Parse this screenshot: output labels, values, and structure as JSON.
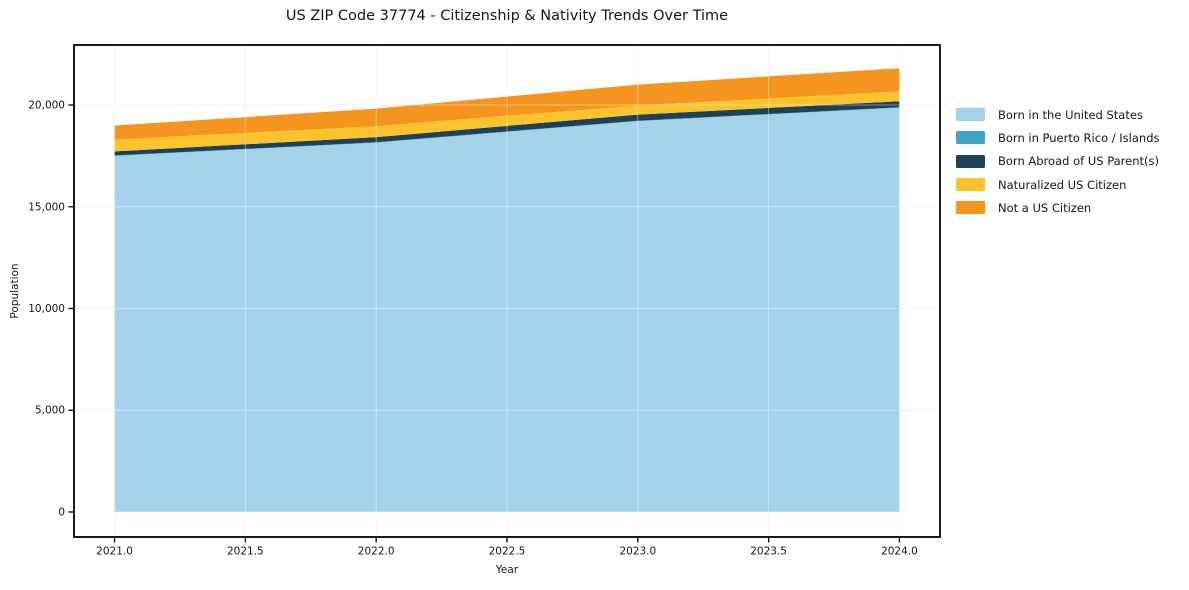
{
  "chart_data": {
    "type": "area",
    "stacked": true,
    "title": "US ZIP Code 37774 - Citizenship & Nativity Trends Over Time",
    "xlabel": "Year",
    "ylabel": "Population",
    "x": [
      2021,
      2022,
      2023,
      2024
    ],
    "series": [
      {
        "name": "Born in the United States",
        "color": "#a3d2e9",
        "values": [
          17500,
          18150,
          19210,
          19870
        ]
      },
      {
        "name": "Born in Puerto Rico / Islands",
        "color": "#41a5c6",
        "values": [
          20,
          20,
          20,
          20
        ]
      },
      {
        "name": "Born Abroad of US Parent(s)",
        "color": "#1e4254",
        "values": [
          200,
          250,
          300,
          295
        ]
      },
      {
        "name": "Naturalized US Citizen",
        "color": "#fdc32d",
        "values": [
          580,
          540,
          450,
          485
        ]
      },
      {
        "name": "Not a US Citizen",
        "color": "#f5941f",
        "values": [
          690,
          865,
          1025,
          1140
        ]
      }
    ],
    "xticks": [
      2021.0,
      2021.5,
      2022.0,
      2022.5,
      2023.0,
      2023.5,
      2024.0
    ],
    "xtick_labels": [
      "2021.0",
      "2021.5",
      "2022.0",
      "2022.5",
      "2023.0",
      "2023.5",
      "2024.0"
    ],
    "yticks": [
      0,
      5000,
      10000,
      15000,
      20000
    ],
    "ytick_labels": [
      "0",
      "5,000",
      "10,000",
      "15,000",
      "20,000"
    ],
    "xlim": [
      2020.845,
      2024.155
    ],
    "ylim": [
      -1230,
      22950
    ],
    "grid": true,
    "legend_position": "right",
    "axis_color": "#000000",
    "grid_color_under": "rgba(0,0,0,0.06)",
    "grid_color_over": "rgba(255,255,255,0.4)",
    "background_color": "#ffffff"
  }
}
